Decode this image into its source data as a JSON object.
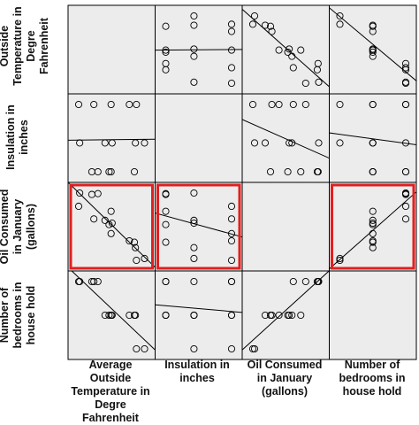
{
  "chart_data": {
    "type": "scatter",
    "variables": [
      "Average Outside Temperature in Degre Fahrenheit",
      "Insulation in inches",
      "Oil Consumed in January (gallons)",
      "Number of bedrooms in house hold"
    ],
    "row_labels": [
      "Average Outside Temperature in Degre Fahrenheit",
      "Insulation in inches",
      "Oil Consumed in January (gallons)",
      "Number of bedrooms in house hold"
    ],
    "col_labels": [
      "Average Outside Temperature in Degre Fahrenheit",
      "Insulation in inches",
      "Oil Consumed in January (gallons)",
      "Number of bedrooms in house hold"
    ],
    "observations": [
      {
        "temp": 40,
        "insulation": 3,
        "oil": 275,
        "bedrooms": 3
      },
      {
        "temp": 27,
        "insulation": 3,
        "oil": 363,
        "bedrooms": 4
      },
      {
        "temp": 40,
        "insulation": 10,
        "oil": 164,
        "bedrooms": 3
      },
      {
        "temp": 73,
        "insulation": 6,
        "oil": 40,
        "bedrooms": 2
      },
      {
        "temp": 64,
        "insulation": 6,
        "oil": 94,
        "bedrooms": 3
      },
      {
        "temp": 34,
        "insulation": 6,
        "oil": 230,
        "bedrooms": 3
      },
      {
        "temp": 9,
        "insulation": 6,
        "oil": 366,
        "bedrooms": 4
      },
      {
        "temp": 8,
        "insulation": 10,
        "oil": 300,
        "bedrooms": 4
      },
      {
        "temp": 23,
        "insulation": 10,
        "oil": 237,
        "bedrooms": 4
      },
      {
        "temp": 63,
        "insulation": 3,
        "oil": 121,
        "bedrooms": 3
      },
      {
        "temp": 65,
        "insulation": 10,
        "oil": 31,
        "bedrooms": 2
      },
      {
        "temp": 41,
        "insulation": 6,
        "oil": 216,
        "bedrooms": 3
      },
      {
        "temp": 21,
        "insulation": 3,
        "oil": 359,
        "bedrooms": 4
      },
      {
        "temp": 38,
        "insulation": 3,
        "oil": 209,
        "bedrooms": 3
      },
      {
        "temp": 58,
        "insulation": 10,
        "oil": 128,
        "bedrooms": 3
      }
    ],
    "highlighted_panels": [
      [
        2,
        0
      ],
      [
        2,
        1
      ],
      [
        2,
        3
      ]
    ],
    "highlight_color": "#e02020",
    "grid": false,
    "legend": "none"
  }
}
